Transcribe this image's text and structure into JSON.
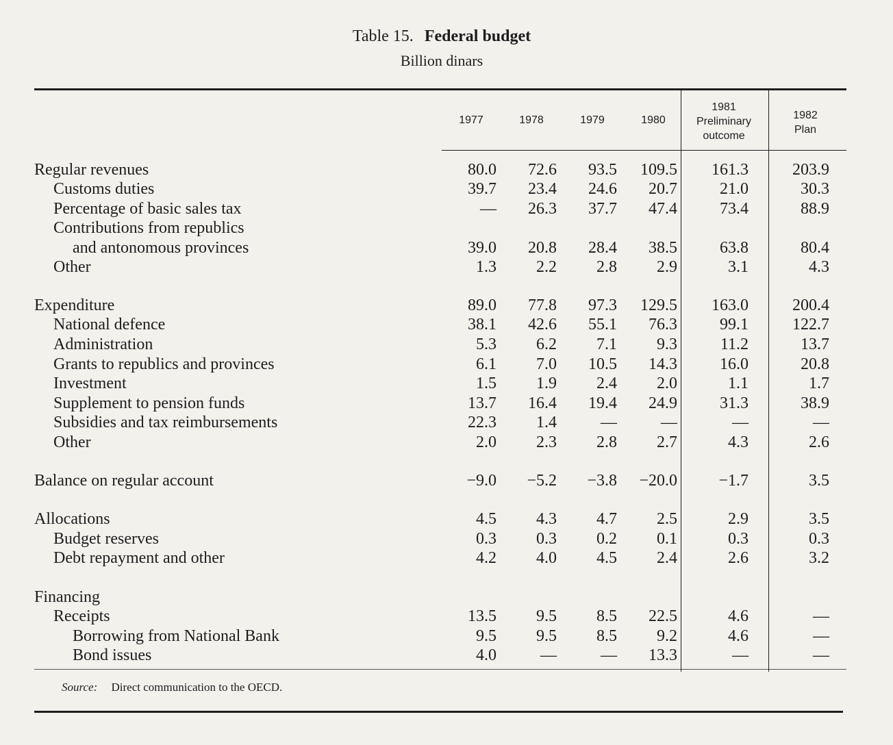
{
  "table": {
    "number": "Table 15.",
    "title": "Federal budget",
    "subtitle": "Billion dinars",
    "columns": [
      {
        "lines": [
          "1977"
        ]
      },
      {
        "lines": [
          "1978"
        ]
      },
      {
        "lines": [
          "1979"
        ]
      },
      {
        "lines": [
          "1980"
        ]
      },
      {
        "lines": [
          "1981",
          "Preliminary",
          "outcome"
        ]
      },
      {
        "lines": [
          "1982",
          "Plan"
        ]
      }
    ],
    "rows": [
      {
        "label": "Regular revenues",
        "indent": 0,
        "values": [
          "80.0",
          "72.6",
          "93.5",
          "109.5",
          "161.3",
          "203.9"
        ]
      },
      {
        "label": "Customs duties",
        "indent": 1,
        "values": [
          "39.7",
          "23.4",
          "24.6",
          "20.7",
          "21.0",
          "30.3"
        ]
      },
      {
        "label": "Percentage of basic sales tax",
        "indent": 1,
        "values": [
          "—",
          "26.3",
          "37.7",
          "47.4",
          "73.4",
          "88.9"
        ]
      },
      {
        "label": "Contributions from republics",
        "indent": 1,
        "values": [
          "",
          "",
          "",
          "",
          "",
          ""
        ]
      },
      {
        "label": "and antonomous provinces",
        "indent": 2,
        "values": [
          "39.0",
          "20.8",
          "28.4",
          "38.5",
          "63.8",
          "80.4"
        ]
      },
      {
        "label": "Other",
        "indent": 1,
        "values": [
          "1.3",
          "2.2",
          "2.8",
          "2.9",
          "3.1",
          "4.3"
        ]
      },
      {
        "label": "Expenditure",
        "indent": 0,
        "values": [
          "89.0",
          "77.8",
          "97.3",
          "129.5",
          "163.0",
          "200.4"
        ]
      },
      {
        "label": "National defence",
        "indent": 1,
        "values": [
          "38.1",
          "42.6",
          "55.1",
          "76.3",
          "99.1",
          "122.7"
        ]
      },
      {
        "label": "Administration",
        "indent": 1,
        "values": [
          "5.3",
          "6.2",
          "7.1",
          "9.3",
          "11.2",
          "13.7"
        ]
      },
      {
        "label": "Grants to republics and provinces",
        "indent": 1,
        "values": [
          "6.1",
          "7.0",
          "10.5",
          "14.3",
          "16.0",
          "20.8"
        ]
      },
      {
        "label": "Investment",
        "indent": 1,
        "values": [
          "1.5",
          "1.9",
          "2.4",
          "2.0",
          "1.1",
          "1.7"
        ]
      },
      {
        "label": "Supplement to pension funds",
        "indent": 1,
        "values": [
          "13.7",
          "16.4",
          "19.4",
          "24.9",
          "31.3",
          "38.9"
        ]
      },
      {
        "label": "Subsidies and tax reimbursements",
        "indent": 1,
        "values": [
          "22.3",
          "1.4",
          "—",
          "—",
          "—",
          "—"
        ]
      },
      {
        "label": "Other",
        "indent": 1,
        "values": [
          "2.0",
          "2.3",
          "2.8",
          "2.7",
          "4.3",
          "2.6"
        ]
      },
      {
        "label": "Balance on regular account",
        "indent": 0,
        "values": [
          "−9.0",
          "−5.2",
          "−3.8",
          "−20.0",
          "−1.7",
          "3.5"
        ]
      },
      {
        "label": "Allocations",
        "indent": 0,
        "values": [
          "4.5",
          "4.3",
          "4.7",
          "2.5",
          "2.9",
          "3.5"
        ]
      },
      {
        "label": "Budget reserves",
        "indent": 1,
        "values": [
          "0.3",
          "0.3",
          "0.2",
          "0.1",
          "0.3",
          "0.3"
        ]
      },
      {
        "label": "Debt repayment and other",
        "indent": 1,
        "values": [
          "4.2",
          "4.0",
          "4.5",
          "2.4",
          "2.6",
          "3.2"
        ]
      },
      {
        "label": "Financing",
        "indent": 0,
        "values": [
          "",
          "",
          "",
          "",
          "",
          ""
        ]
      },
      {
        "label": "Receipts",
        "indent": 1,
        "values": [
          "13.5",
          "9.5",
          "8.5",
          "22.5",
          "4.6",
          "—"
        ]
      },
      {
        "label": "Borrowing from National Bank",
        "indent": 2,
        "values": [
          "9.5",
          "9.5",
          "8.5",
          "9.2",
          "4.6",
          "—"
        ]
      },
      {
        "label": "Bond issues",
        "indent": 2,
        "values": [
          "4.0",
          "—",
          "—",
          "13.3",
          "—",
          "—"
        ]
      }
    ],
    "source_label": "Source:",
    "source_text": "Direct communication to the OECD."
  }
}
